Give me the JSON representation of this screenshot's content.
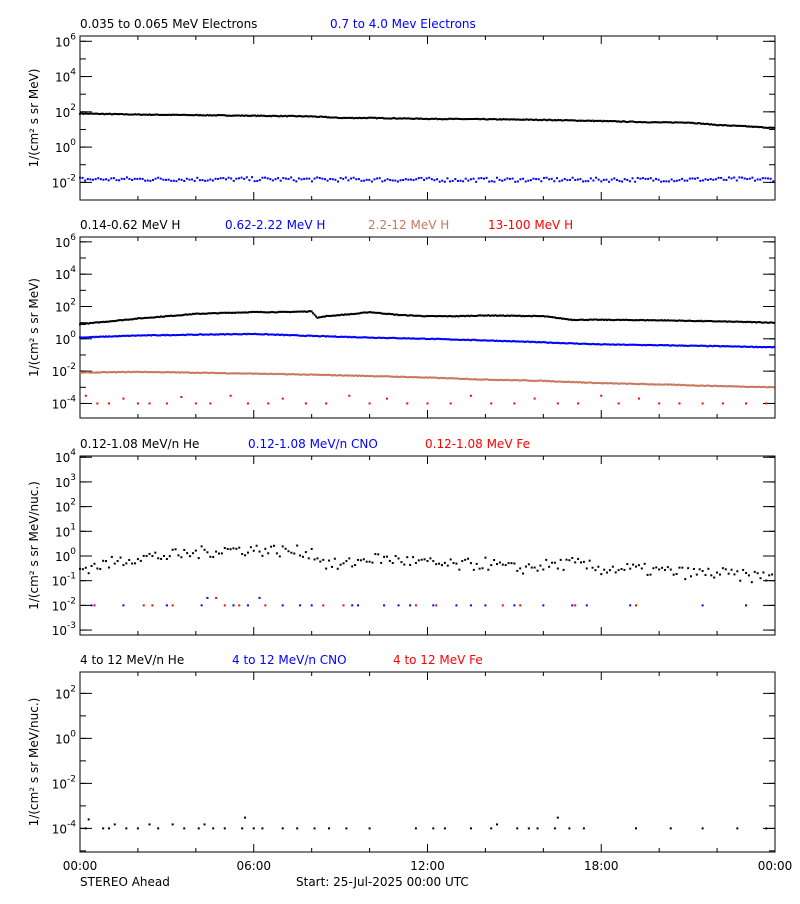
{
  "footer": {
    "spacecraft": "STEREO Ahead",
    "start": "Start: 25-Jul-2025 00:00 UTC"
  },
  "chart_data": [
    {
      "type": "scatter",
      "ylabel": "1/(cm² s sr MeV)",
      "yscale": "log",
      "ylim_log10": [
        -3,
        6.3
      ],
      "ytick_exponents": [
        "6",
        "4",
        "2",
        "0",
        "-2"
      ],
      "xlim_hours": [
        0,
        24
      ],
      "xtick_labels": [
        "00:00",
        "06:00",
        "12:00",
        "18:00",
        "00:00"
      ],
      "series": [
        {
          "name": "0.035 to 0.065 MeV Electrons",
          "color": "#000000",
          "mode": "curve",
          "x": [
            0,
            2,
            4,
            6,
            8,
            9,
            10,
            12,
            14,
            16,
            18,
            20,
            21,
            22,
            23,
            24
          ],
          "y": [
            80,
            70,
            65,
            60,
            55,
            45,
            45,
            40,
            38,
            35,
            30,
            25,
            25,
            18,
            15,
            12
          ]
        },
        {
          "name": "0.7 to 4.0 Mev Electrons",
          "color": "#0000ff",
          "mode": "noisy",
          "x": [
            0,
            6,
            12,
            18,
            24
          ],
          "y": [
            0.015,
            0.015,
            0.014,
            0.014,
            0.015
          ]
        }
      ]
    },
    {
      "type": "scatter",
      "ylabel": "1/(cm² s sr MeV)",
      "yscale": "log",
      "ylim_log10": [
        -4.9,
        6.3
      ],
      "ytick_exponents": [
        "6",
        "4",
        "2",
        "0",
        "-2",
        "-4"
      ],
      "xlim_hours": [
        0,
        24
      ],
      "xtick_labels": [
        "00:00",
        "06:00",
        "12:00",
        "18:00",
        "00:00"
      ],
      "series": [
        {
          "name": "0.14-0.62 MeV H",
          "color": "#000000",
          "mode": "curve",
          "x": [
            0,
            1,
            2,
            3,
            4,
            5,
            6,
            7,
            8,
            8.2,
            8.5,
            9,
            9.5,
            10,
            11,
            12,
            13,
            14,
            16,
            17,
            18,
            20,
            22,
            24
          ],
          "y": [
            8,
            12,
            18,
            25,
            35,
            40,
            45,
            45,
            50,
            20,
            25,
            30,
            35,
            45,
            30,
            25,
            25,
            28,
            25,
            15,
            15,
            14,
            12,
            10
          ]
        },
        {
          "name": "0.62-2.22 MeV H",
          "color": "#0000ff",
          "mode": "curve",
          "x": [
            0,
            2,
            4,
            6,
            8,
            10,
            12,
            14,
            16,
            18,
            20,
            22,
            24
          ],
          "y": [
            1.2,
            1.6,
            1.8,
            2.0,
            1.5,
            1.2,
            1.0,
            0.8,
            0.6,
            0.45,
            0.4,
            0.35,
            0.3
          ]
        },
        {
          "name": "2.2-12 MeV H",
          "color": "#c87860",
          "mode": "curve",
          "x": [
            0,
            2,
            4,
            6,
            8,
            10,
            12,
            14,
            16,
            18,
            20,
            22,
            24
          ],
          "y": [
            0.008,
            0.009,
            0.008,
            0.007,
            0.006,
            0.005,
            0.004,
            0.003,
            0.0025,
            0.0018,
            0.0015,
            0.0012,
            0.001
          ]
        },
        {
          "name": "13-100 MeV H",
          "color": "#ff0000",
          "mode": "sparse",
          "x": [
            0.2,
            0.6,
            1,
            1.5,
            2,
            2.4,
            3,
            3.5,
            4,
            4.5,
            5.2,
            5.8,
            6.5,
            7,
            7.8,
            8.5,
            9.3,
            10,
            10.6,
            11.3,
            12,
            12.8,
            13.5,
            14.2,
            15,
            15.7,
            16.5,
            17.2,
            18,
            18.6,
            19.3,
            20,
            20.7,
            21.5,
            22.2,
            23,
            23.7
          ],
          "y": [
            0.0003,
            0.0001,
            0.0001,
            0.0002,
            0.0001,
            0.0001,
            0.0001,
            0.00025,
            0.0001,
            0.0001,
            0.0003,
            0.0001,
            0.0001,
            0.0002,
            0.0001,
            0.0001,
            0.0003,
            0.0001,
            0.0002,
            0.0001,
            0.0001,
            0.0001,
            0.0003,
            0.0001,
            0.0001,
            0.0002,
            0.0001,
            0.0001,
            0.0003,
            0.0001,
            0.0002,
            0.0001,
            0.0001,
            0.0001,
            0.0001,
            0.0001,
            0.0001
          ]
        }
      ]
    },
    {
      "type": "scatter",
      "ylabel": "1/(cm² s sr MeV/nuc.)",
      "yscale": "log",
      "ylim_log10": [
        -3.2,
        4.05
      ],
      "ytick_exponents": [
        "4",
        "3",
        "2",
        "1",
        "0",
        "-1",
        "-2",
        "-3"
      ],
      "xlim_hours": [
        0,
        24
      ],
      "xtick_labels": [
        "00:00",
        "06:00",
        "12:00",
        "18:00",
        "00:00"
      ],
      "series": [
        {
          "name": "0.12-1.08 MeV/n He",
          "color": "#000000",
          "mode": "noisy",
          "x": [
            0,
            1,
            2,
            3,
            4,
            5,
            6,
            7,
            8,
            8.5,
            9,
            10,
            11,
            12,
            13,
            14,
            15,
            16,
            17,
            18,
            19,
            20,
            21,
            22,
            23,
            24
          ],
          "y": [
            0.3,
            0.5,
            0.9,
            1.0,
            1.3,
            1.8,
            1.8,
            1.6,
            1.4,
            0.5,
            0.4,
            0.8,
            0.7,
            0.5,
            0.4,
            0.5,
            0.3,
            0.4,
            0.5,
            0.3,
            0.3,
            0.25,
            0.2,
            0.2,
            0.15,
            0.15
          ]
        },
        {
          "name": "0.12-1.08 MeV/n CNO",
          "color": "#0000ff",
          "mode": "sparse",
          "x": [
            0.4,
            1.5,
            3,
            4.2,
            4.4,
            5.3,
            5.8,
            6.2,
            7,
            7.6,
            8,
            9.4,
            9.6,
            10.5,
            11,
            11.4,
            12.2,
            13,
            13.5,
            14,
            15,
            16,
            17,
            17.5,
            19,
            21.5,
            23
          ],
          "y": [
            0.01,
            0.01,
            0.01,
            0.01,
            0.02,
            0.01,
            0.01,
            0.02,
            0.01,
            0.01,
            0.01,
            0.01,
            0.01,
            0.01,
            0.01,
            0.01,
            0.01,
            0.01,
            0.01,
            0.01,
            0.01,
            0.01,
            0.01,
            0.01,
            0.01,
            0.01,
            0.01
          ]
        },
        {
          "name": "0.12-1.08 MeV Fe",
          "color": "#ff0000",
          "mode": "sparse",
          "x": [
            0.5,
            2.2,
            2.5,
            3.2,
            4.7,
            5.0,
            5.5,
            6.4,
            8.4,
            9.1,
            11.6,
            12.3,
            14.6,
            15.2,
            17.1,
            19.2
          ],
          "y": [
            0.01,
            0.01,
            0.01,
            0.01,
            0.02,
            0.01,
            0.01,
            0.01,
            0.01,
            0.01,
            0.01,
            0.01,
            0.01,
            0.01,
            0.01,
            0.01
          ]
        }
      ]
    },
    {
      "type": "scatter",
      "ylabel": "1/(cm² s sr MeV/nuc.)",
      "yscale": "log",
      "ylim_log10": [
        -5.05,
        2.95
      ],
      "ytick_exponents": [
        "2",
        "0",
        "-2",
        "-4"
      ],
      "xlim_hours": [
        0,
        24
      ],
      "xtick_labels": [
        "00:00",
        "06:00",
        "12:00",
        "18:00",
        "00:00"
      ],
      "series": [
        {
          "name": "4 to 12 MeV/n He",
          "color": "#000000",
          "mode": "sparse",
          "x": [
            0.2,
            0.3,
            0.8,
            1,
            1.2,
            1.6,
            2,
            2.4,
            2.7,
            3.2,
            3.6,
            4.1,
            4.3,
            4.6,
            5,
            5.6,
            5.7,
            6,
            6.3,
            7,
            7.5,
            8.1,
            8.6,
            9.2,
            10,
            11.6,
            12.2,
            12.6,
            13.5,
            14.2,
            14.4,
            15.1,
            15.5,
            15.8,
            16.4,
            16.5,
            16.9,
            17.4,
            19.2,
            20.4,
            21.5,
            22.7,
            23.7
          ],
          "y": [
            0.0001,
            0.00025,
            0.0001,
            0.0001,
            0.00015,
            0.0001,
            0.0001,
            0.00015,
            0.0001,
            0.00015,
            0.0001,
            0.0001,
            0.00015,
            0.0001,
            0.0001,
            0.0001,
            0.0003,
            0.0001,
            0.0001,
            0.0001,
            0.0001,
            0.0001,
            0.0001,
            0.0001,
            0.0001,
            0.0001,
            0.0001,
            0.0001,
            0.0001,
            0.0001,
            0.00015,
            0.0001,
            0.0001,
            0.0001,
            0.0001,
            0.0003,
            0.0001,
            0.0001,
            0.0001,
            0.0001,
            0.0001,
            0.0001,
            0.0001
          ]
        },
        {
          "name": "4 to 12 MeV/n CNO",
          "color": "#0000ff",
          "mode": "sparse",
          "x": [],
          "y": []
        },
        {
          "name": "4 to 12 MeV Fe",
          "color": "#ff0000",
          "mode": "sparse",
          "x": [],
          "y": []
        }
      ]
    }
  ]
}
